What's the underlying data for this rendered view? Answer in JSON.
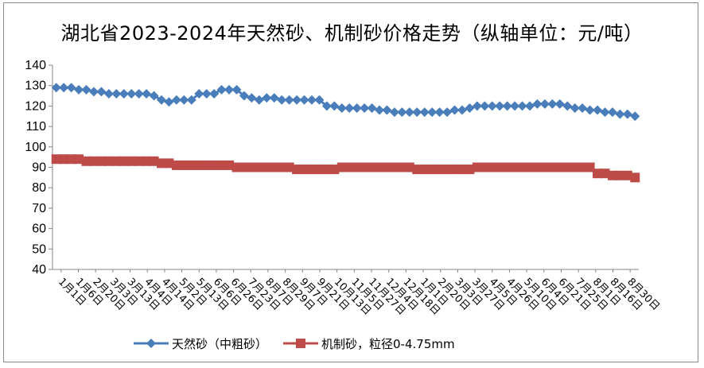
{
  "chart_data": {
    "type": "line",
    "title": "湖北省2023-2024年天然砂、机制砂价格走势（纵轴单位：元/吨）",
    "xlabel": "",
    "ylabel": "",
    "ylim": [
      40,
      140
    ],
    "yticks": [
      "40",
      "50",
      "60",
      "70",
      "80",
      "90",
      "100",
      "110",
      "120",
      "130",
      "140"
    ],
    "grid": false,
    "legend_position": "bottom",
    "x_tick_labels": [
      "1月1日",
      "1月6日",
      "2月20日",
      "3月3日",
      "3月13日",
      "4月4日",
      "4月14日",
      "5月2日",
      "5月13日",
      "6月6日",
      "6月26日",
      "7月23日",
      "8月7日",
      "8月29日",
      "9月7日",
      "9月21日",
      "10月13日",
      "11月5日",
      "11月27日",
      "12月4日",
      "12月18日",
      "1月1日",
      "2月20日",
      "3月3日",
      "3月27日",
      "4月5日",
      "4月26日",
      "5月10日",
      "6月4日",
      "6月21日",
      "7月25日",
      "8月1日",
      "8月16日",
      "8月30日"
    ],
    "series": [
      {
        "name": "天然砂（中粗砂）",
        "color": "#4a7ebb",
        "marker": "diamond",
        "values": [
          129,
          129,
          129,
          128,
          128,
          127,
          127,
          126,
          126,
          126,
          126,
          126,
          126,
          125,
          123,
          122,
          123,
          123,
          123,
          126,
          126,
          126,
          128,
          128,
          128,
          125,
          124,
          123,
          124,
          124,
          123,
          123,
          123,
          123,
          123,
          123,
          120,
          120,
          119,
          119,
          119,
          119,
          119,
          118,
          118,
          117,
          117,
          117,
          117,
          117,
          117,
          117,
          117,
          118,
          118,
          119,
          120,
          120,
          120,
          120,
          120,
          120,
          120,
          120,
          121,
          121,
          121,
          121,
          120,
          119,
          119,
          118,
          118,
          117,
          117,
          116,
          116,
          115
        ]
      },
      {
        "name": "机制砂，粒径0-4.75mm",
        "color": "#be4b48",
        "marker": "square",
        "values": [
          94,
          94,
          94,
          94,
          93,
          93,
          93,
          93,
          93,
          93,
          93,
          93,
          93,
          93,
          92,
          92,
          91,
          91,
          91,
          91,
          91,
          91,
          91,
          91,
          90,
          90,
          90,
          90,
          90,
          90,
          90,
          90,
          89,
          89,
          89,
          89,
          89,
          89,
          90,
          90,
          90,
          90,
          90,
          90,
          90,
          90,
          90,
          90,
          89,
          89,
          89,
          89,
          89,
          89,
          89,
          89,
          90,
          90,
          90,
          90,
          90,
          90,
          90,
          90,
          90,
          90,
          90,
          90,
          90,
          90,
          90,
          90,
          87,
          87,
          86,
          86,
          86,
          85
        ]
      }
    ]
  }
}
